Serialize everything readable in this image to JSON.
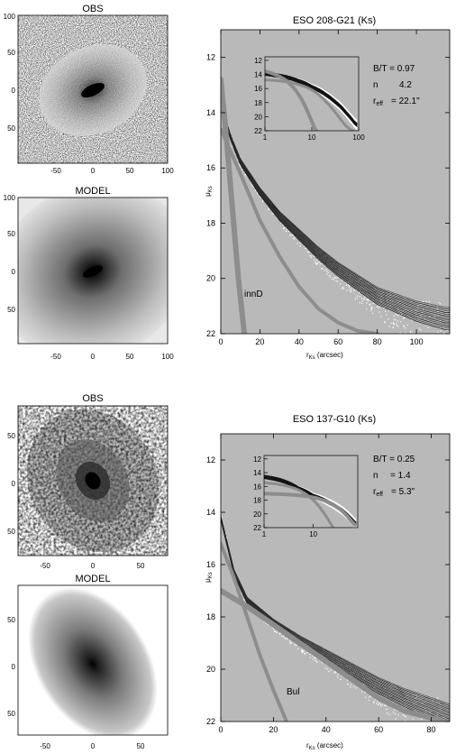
{
  "panels": [
    {
      "title": "ESO 208-G21 (Ks)",
      "obs_label": "OBS",
      "model_label": "MODEL",
      "image_ticks": {
        "x": [
          "-50",
          "0",
          "50",
          "100"
        ],
        "y": [
          "100",
          "50",
          "0",
          "50"
        ]
      },
      "annotation": {
        "line1": "B/T = 0.97",
        "line2_key": "n",
        "line2_val": "4.2",
        "line3_key": "r",
        "line3_sub": "eff",
        "line3_val": "= 22.1\""
      },
      "component_label": "innD",
      "ylabel": "μKs",
      "xlabel": "r Ks (arcsec)"
    },
    {
      "title": "ESO 137-G10 (Ks)",
      "obs_label": "OBS",
      "model_label": "MODEL",
      "image_ticks": {
        "x": [
          "-50",
          "0",
          "50"
        ],
        "y": [
          "50",
          "0",
          "50"
        ]
      },
      "annotation": {
        "line1": "B/T = 0.25",
        "line2_key": "n",
        "line2_val": "= 1.4",
        "line3_key": "r",
        "line3_sub": "eff",
        "line3_val": "= 5.3\""
      },
      "component_label": "Bul",
      "ylabel": "μKs",
      "xlabel": "r Ks (arcsec)"
    }
  ],
  "chart_data": [
    {
      "type": "scatter",
      "title": "ESO 208-G21 (Ks)",
      "xlabel": "r Ks (arcsec)",
      "ylabel": "μKs",
      "xlim": [
        0,
        117
      ],
      "ylim": [
        22,
        11
      ],
      "xticks": [
        0,
        20,
        40,
        60,
        80,
        100
      ],
      "yticks": [
        12,
        14,
        16,
        18,
        20,
        22
      ],
      "series": [
        {
          "values": [
            [
              0,
              13.6
            ],
            [
              2,
              14.2
            ],
            [
              5,
              14.9
            ],
            [
              10,
              15.8
            ],
            [
              20,
              16.9
            ],
            [
              30,
              17.8
            ],
            [
              40,
              18.5
            ],
            [
              50,
              19.2
            ],
            [
              60,
              19.8
            ],
            [
              70,
              20.3
            ],
            [
              80,
              20.8
            ],
            [
              90,
              21.1
            ],
            [
              100,
              21.4
            ],
            [
              115,
              21.7
            ]
          ]
        },
        {
          "values": [
            [
              0,
              12.8
            ],
            [
              3,
              15.0
            ],
            [
              6,
              17.5
            ],
            [
              9,
              20.0
            ],
            [
              12,
              22.0
            ]
          ]
        },
        {
          "values": [
            [
              0,
              14.6
            ],
            [
              10,
              16.2
            ],
            [
              20,
              17.9
            ],
            [
              30,
              19.2
            ],
            [
              40,
              20.3
            ],
            [
              50,
              21.1
            ],
            [
              60,
              21.6
            ],
            [
              70,
              21.9
            ],
            [
              80,
              22.0
            ]
          ]
        }
      ],
      "inset": {
        "xscale": "log",
        "xlim": [
          1,
          100
        ],
        "ylim": [
          22,
          11.5
        ],
        "xticks": [
          1,
          10,
          100
        ],
        "yticks": [
          12,
          14,
          16,
          18,
          20,
          22
        ]
      }
    },
    {
      "type": "scatter",
      "title": "ESO 137-G10 (Ks)",
      "xlabel": "r Ks (arcsec)",
      "ylabel": "μKs",
      "xlim": [
        0,
        87
      ],
      "ylim": [
        22,
        11
      ],
      "xticks": [
        0,
        20,
        40,
        60,
        80
      ],
      "yticks": [
        12,
        14,
        16,
        18,
        20,
        22
      ],
      "series": [
        {
          "values": [
            [
              0,
              14.2
            ],
            [
              5,
              16.3
            ],
            [
              10,
              17.4
            ],
            [
              20,
              18.3
            ],
            [
              30,
              19.0
            ],
            [
              40,
              19.6
            ],
            [
              50,
              20.2
            ],
            [
              60,
              20.8
            ],
            [
              70,
              21.3
            ],
            [
              80,
              21.7
            ],
            [
              87,
              22.0
            ]
          ]
        },
        {
          "values": [
            [
              0,
              17.0
            ],
            [
              10,
              17.6
            ],
            [
              20,
              18.3
            ],
            [
              30,
              19.0
            ],
            [
              40,
              19.7
            ],
            [
              50,
              20.4
            ],
            [
              60,
              21.1
            ],
            [
              70,
              21.6
            ],
            [
              85,
              22.0
            ]
          ]
        },
        {
          "values": [
            [
              0,
              15.2
            ],
            [
              5,
              16.5
            ],
            [
              10,
              18.0
            ],
            [
              15,
              19.5
            ],
            [
              20,
              20.8
            ],
            [
              25,
              22.0
            ]
          ]
        }
      ],
      "inset": {
        "xscale": "log",
        "xlim": [
          1,
          80
        ],
        "ylim": [
          22,
          11.5
        ],
        "xticks": [
          1,
          10
        ],
        "yticks": [
          12,
          14,
          16,
          18,
          20,
          22
        ]
      }
    }
  ]
}
